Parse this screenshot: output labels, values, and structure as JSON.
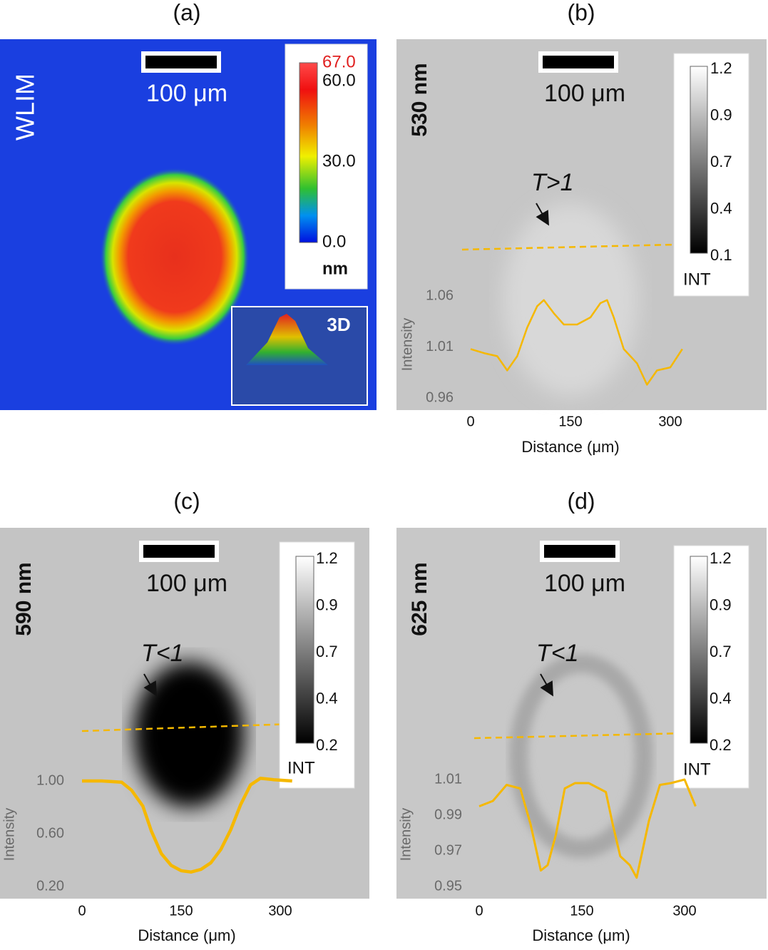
{
  "panels": [
    {
      "label": "(a)",
      "side_label": "WLIM",
      "scale_bar": "100 μm",
      "inset_label": "3D",
      "colorbar": {
        "lim": [
          0,
          67
        ],
        "ticks": [
          {
            "value": 67,
            "label": "67.0"
          },
          {
            "value": 60,
            "label": "60.0"
          },
          {
            "value": 30,
            "label": "30.0"
          },
          {
            "value": 0,
            "label": "0.0"
          }
        ],
        "unit": "nm"
      }
    },
    {
      "label": "(b)",
      "side_label": "530 nm",
      "scale_bar": "100 μm",
      "annotation": "T>1",
      "colorbar": {
        "ticks": [
          1.2,
          0.9,
          0.7,
          0.4,
          0.1
        ],
        "unit": "INT"
      }
    },
    {
      "label": "(c)",
      "side_label": "590 nm",
      "scale_bar": "100 μm",
      "annotation": "T<1",
      "colorbar": {
        "ticks": [
          1.2,
          0.9,
          0.7,
          0.4,
          0.2
        ],
        "unit": "INT"
      }
    },
    {
      "label": "(d)",
      "side_label": "625 nm",
      "scale_bar": "100 μm",
      "annotation": "T<1",
      "colorbar": {
        "ticks": [
          1.2,
          0.9,
          0.7,
          0.4,
          0.2
        ],
        "unit": "INT"
      }
    }
  ],
  "chart_data": [
    {
      "type": "line",
      "x_label": "Distance (μm)",
      "y_label": "Intensity",
      "color": "#f5b800",
      "x": [
        0,
        20,
        40,
        55,
        70,
        85,
        100,
        110,
        125,
        140,
        160,
        180,
        195,
        205,
        215,
        230,
        250,
        265,
        280,
        300,
        318
      ],
      "values": [
        1.008,
        1.004,
        1.001,
        0.987,
        1.001,
        1.029,
        1.05,
        1.056,
        1.043,
        1.032,
        1.032,
        1.039,
        1.053,
        1.056,
        1.039,
        1.008,
        0.994,
        0.973,
        0.987,
        0.99,
        1.008
      ],
      "xlim": [
        0,
        300
      ],
      "xticks": [
        0,
        150,
        300
      ],
      "ylim": [
        0.96,
        1.06
      ],
      "yticks": [
        0.96,
        1.01,
        1.06
      ]
    },
    {
      "type": "line",
      "x_label": "Distance (μm)",
      "y_label": "Intensity",
      "color": "#f5b800",
      "x": [
        0,
        30,
        60,
        75,
        92,
        105,
        120,
        135,
        150,
        165,
        180,
        195,
        210,
        225,
        240,
        255,
        270,
        290,
        318
      ],
      "values": [
        1.0,
        1.0,
        0.99,
        0.93,
        0.81,
        0.62,
        0.45,
        0.36,
        0.32,
        0.31,
        0.33,
        0.38,
        0.48,
        0.63,
        0.82,
        0.97,
        1.02,
        1.01,
        1.0
      ],
      "xlim": [
        0,
        300
      ],
      "xticks": [
        0,
        150,
        300
      ],
      "ylim": [
        0.2,
        1.0
      ],
      "yticks": [
        {
          "value": 0.2,
          "label": "0.20"
        },
        {
          "value": 0.6,
          "label": "0.60"
        },
        {
          "value": 1.0,
          "label": "1.00"
        }
      ]
    },
    {
      "type": "line",
      "x_label": "Distance (μm)",
      "y_label": "Intensity",
      "color": "#f5b800",
      "x": [
        0,
        20,
        40,
        60,
        75,
        90,
        100,
        112,
        125,
        140,
        160,
        185,
        195,
        206,
        220,
        230,
        248,
        264,
        280,
        300,
        316
      ],
      "values": [
        0.995,
        0.998,
        1.007,
        1.005,
        0.985,
        0.959,
        0.962,
        0.979,
        1.005,
        1.008,
        1.008,
        1.003,
        0.985,
        0.967,
        0.962,
        0.955,
        0.987,
        1.007,
        1.008,
        1.01,
        0.995
      ],
      "xlim": [
        0,
        300
      ],
      "xticks": [
        0,
        150,
        300
      ],
      "ylim": [
        0.95,
        1.01
      ],
      "yticks": [
        0.95,
        0.97,
        0.99,
        1.01
      ]
    }
  ]
}
